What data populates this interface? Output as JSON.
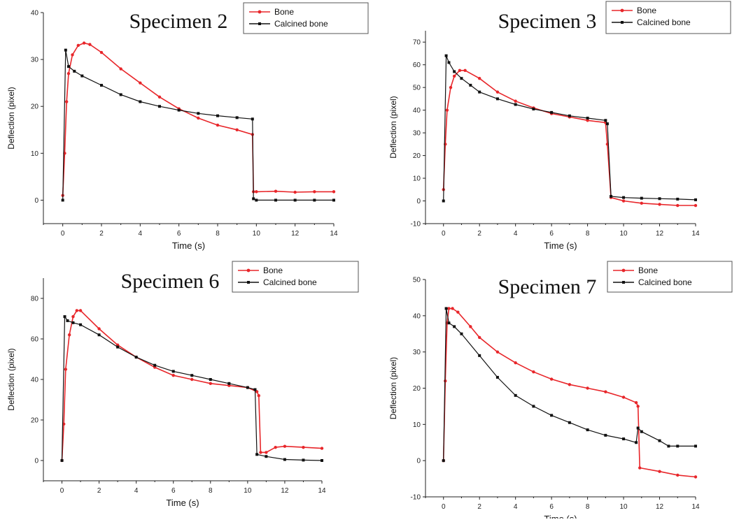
{
  "chart_data": [
    {
      "type": "line",
      "title": "Specimen 2",
      "xlabel": "Time (s)",
      "ylabel": "Deflection (pixel)",
      "xlim": [
        -1,
        14
      ],
      "ylim": [
        -5,
        40
      ],
      "xticks": [
        0,
        2,
        4,
        6,
        8,
        10,
        12,
        14
      ],
      "yticks": [
        0,
        10,
        20,
        30,
        40
      ],
      "legend": "top-right",
      "series": [
        {
          "name": "Bone",
          "color": "#e8262a",
          "x": [
            0,
            0.1,
            0.2,
            0.3,
            0.5,
            0.8,
            1.1,
            1.4,
            2,
            3,
            4,
            5,
            6,
            7,
            8,
            9,
            9.8,
            9.85,
            10,
            11,
            12,
            13,
            14
          ],
          "y": [
            1,
            10,
            21,
            27,
            31,
            33,
            33.5,
            33.2,
            31.5,
            28,
            25,
            22,
            19.5,
            17.5,
            16,
            15,
            14,
            1.8,
            1.8,
            1.9,
            1.7,
            1.8,
            1.8
          ]
        },
        {
          "name": "Calcined bone",
          "color": "#111111",
          "x": [
            0,
            0.15,
            0.3,
            0.6,
            1,
            2,
            3,
            4,
            5,
            6,
            7,
            8,
            9,
            9.8,
            9.85,
            10,
            11,
            12,
            13,
            14
          ],
          "y": [
            0,
            32,
            28.5,
            27.5,
            26.5,
            24.5,
            22.5,
            21,
            20,
            19.2,
            18.5,
            18,
            17.6,
            17.3,
            0.3,
            0,
            0,
            0,
            0,
            0
          ]
        }
      ]
    },
    {
      "type": "line",
      "title": "Specimen 3",
      "xlabel": "Time (s)",
      "ylabel": "Deflection (pixel)",
      "xlim": [
        -1,
        14
      ],
      "ylim": [
        -10,
        75
      ],
      "xticks": [
        0,
        2,
        4,
        6,
        8,
        10,
        12,
        14
      ],
      "yticks": [
        -10,
        0,
        10,
        20,
        30,
        40,
        50,
        60,
        70
      ],
      "legend": "top-right",
      "series": [
        {
          "name": "Bone",
          "color": "#e8262a",
          "x": [
            0,
            0.1,
            0.2,
            0.4,
            0.6,
            0.9,
            1.2,
            2,
            3,
            4,
            5,
            6,
            7,
            8,
            9,
            9.1,
            9.3,
            10,
            11,
            12,
            13,
            14
          ],
          "y": [
            5,
            25,
            40,
            50,
            55,
            57.5,
            57.5,
            54,
            48,
            44,
            41,
            38.5,
            37,
            35.5,
            34.5,
            25,
            1.5,
            0,
            -1,
            -1.5,
            -2,
            -2
          ]
        },
        {
          "name": "Calcined bone",
          "color": "#111111",
          "x": [
            0,
            0.15,
            0.3,
            0.6,
            1,
            1.5,
            2,
            3,
            4,
            5,
            6,
            7,
            8,
            9,
            9.1,
            9.3,
            10,
            11,
            12,
            13,
            14
          ],
          "y": [
            0,
            64,
            61,
            57,
            54,
            51,
            48,
            45,
            42.5,
            40.5,
            39,
            37.5,
            36.5,
            35.5,
            34,
            2,
            1.5,
            1.2,
            1,
            0.8,
            0.5
          ]
        }
      ]
    },
    {
      "type": "line",
      "title": "Specimen 6",
      "xlabel": "Time (s)",
      "ylabel": "Deflection (pixel)",
      "xlim": [
        -1,
        14
      ],
      "ylim": [
        -10,
        90
      ],
      "xticks": [
        0,
        2,
        4,
        6,
        8,
        10,
        12,
        14
      ],
      "yticks": [
        0,
        20,
        40,
        60,
        80
      ],
      "legend": "top-right",
      "series": [
        {
          "name": "Bone",
          "color": "#e8262a",
          "x": [
            0,
            0.1,
            0.2,
            0.4,
            0.6,
            0.8,
            1,
            2,
            3,
            4,
            5,
            6,
            7,
            8,
            9,
            10,
            10.5,
            10.6,
            10.7,
            11,
            11.5,
            12,
            13,
            14
          ],
          "y": [
            0,
            18,
            45,
            62,
            71,
            74,
            74,
            65,
            57,
            51,
            46,
            42,
            40,
            38,
            37,
            36,
            34,
            32,
            4,
            4,
            6.5,
            7,
            6.5,
            6
          ]
        },
        {
          "name": "Calcined bone",
          "color": "#111111",
          "x": [
            0,
            0.15,
            0.3,
            0.6,
            1,
            2,
            3,
            4,
            5,
            6,
            7,
            8,
            9,
            10,
            10.4,
            10.5,
            11,
            12,
            13,
            14
          ],
          "y": [
            0,
            71,
            69,
            68,
            67,
            62,
            56,
            51,
            47,
            44,
            42,
            40,
            38,
            36,
            35,
            3,
            2,
            0.5,
            0.2,
            0
          ]
        }
      ]
    },
    {
      "type": "line",
      "title": "Specimen 7",
      "xlabel": "Time (s)",
      "ylabel": "Deflection (pixel)",
      "xlim": [
        -1,
        14
      ],
      "ylim": [
        -10,
        50
      ],
      "xticks": [
        0,
        2,
        4,
        6,
        8,
        10,
        12,
        14
      ],
      "yticks": [
        -10,
        0,
        10,
        20,
        30,
        40,
        50
      ],
      "legend": "top-right",
      "series": [
        {
          "name": "Bone",
          "color": "#e8262a",
          "x": [
            0,
            0.1,
            0.2,
            0.3,
            0.5,
            0.8,
            1.5,
            2,
            3,
            4,
            5,
            6,
            7,
            8,
            9,
            10,
            10.7,
            10.8,
            10.9,
            12,
            13,
            14
          ],
          "y": [
            0,
            22,
            38,
            42,
            42,
            41,
            37,
            34,
            30,
            27,
            24.5,
            22.5,
            21,
            20,
            19,
            17.5,
            16,
            15,
            -2,
            -3,
            -4,
            -4.5
          ]
        },
        {
          "name": "Calcined bone",
          "color": "#111111",
          "x": [
            0,
            0.15,
            0.3,
            0.6,
            1,
            2,
            3,
            4,
            5,
            6,
            7,
            8,
            9,
            10,
            10.7,
            10.8,
            11,
            12,
            12.5,
            13,
            14
          ],
          "y": [
            0,
            42,
            38,
            37,
            35,
            29,
            23,
            18,
            15,
            12.5,
            10.5,
            8.5,
            7,
            6,
            5,
            9,
            8,
            5.5,
            4,
            4,
            4
          ]
        }
      ]
    }
  ]
}
